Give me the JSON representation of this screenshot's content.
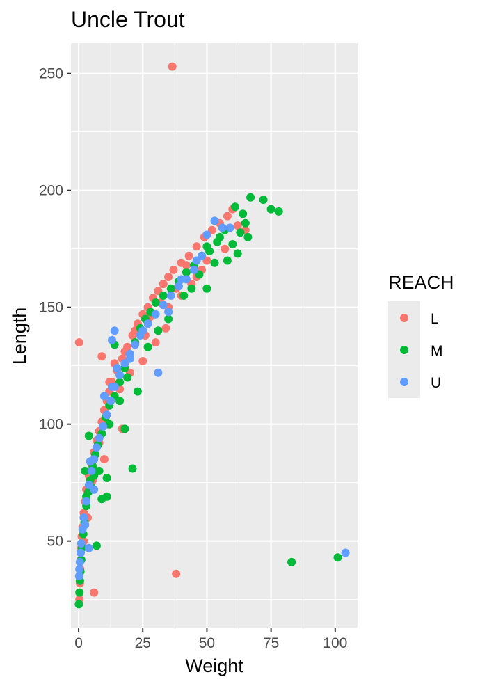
{
  "chart_data": {
    "type": "scatter",
    "title": "Uncle Trout",
    "xlabel": "Weight",
    "ylabel": "Length",
    "xlim": [
      -3,
      109
    ],
    "ylim": [
      13,
      263
    ],
    "x_ticks": [
      0,
      25,
      50,
      75,
      100
    ],
    "y_ticks": [
      50,
      100,
      150,
      200,
      250
    ],
    "grid": true,
    "legend": {
      "title": "REACH",
      "position": "right"
    },
    "series": [
      {
        "name": "L",
        "color": "#f8766d",
        "points": [
          [
            0.2,
            135
          ],
          [
            36.5,
            253
          ],
          [
            38,
            36
          ],
          [
            6,
            28
          ],
          [
            9,
            129
          ],
          [
            10,
            85
          ],
          [
            17,
            98
          ],
          [
            0.3,
            25
          ],
          [
            0.5,
            32
          ],
          [
            0.6,
            38
          ],
          [
            0.8,
            42
          ],
          [
            1.0,
            47
          ],
          [
            1.2,
            52
          ],
          [
            1.5,
            56
          ],
          [
            2.0,
            62
          ],
          [
            2.5,
            67
          ],
          [
            3.0,
            72
          ],
          [
            4.0,
            78
          ],
          [
            5.0,
            83
          ],
          [
            6.0,
            88
          ],
          [
            7.0,
            93
          ],
          [
            8.0,
            97
          ],
          [
            9.0,
            101
          ],
          [
            10.0,
            106
          ],
          [
            11.0,
            110
          ],
          [
            12.0,
            114
          ],
          [
            13.0,
            118
          ],
          [
            15.0,
            123
          ],
          [
            17.0,
            128
          ],
          [
            19.0,
            133
          ],
          [
            21.0,
            138
          ],
          [
            23.0,
            143
          ],
          [
            25.0,
            147
          ],
          [
            27.0,
            150
          ],
          [
            29.0,
            154
          ],
          [
            31.0,
            157
          ],
          [
            33.0,
            160
          ],
          [
            35.0,
            163
          ],
          [
            37.0,
            166
          ],
          [
            40.0,
            169
          ],
          [
            43.0,
            172
          ],
          [
            46.0,
            176
          ],
          [
            49.0,
            180
          ],
          [
            52.0,
            183
          ],
          [
            55.0,
            186
          ],
          [
            58.0,
            189
          ],
          [
            62.0,
            185
          ],
          [
            65.0,
            183
          ],
          [
            30.0,
            135
          ],
          [
            25.0,
            127
          ],
          [
            20.0,
            122
          ],
          [
            14.0,
            126
          ],
          [
            12.0,
            118
          ],
          [
            8.0,
            92
          ],
          [
            5.5,
            76
          ],
          [
            3.5,
            60
          ],
          [
            2.0,
            50
          ],
          [
            44.0,
            160
          ],
          [
            48.0,
            166
          ],
          [
            35.0,
            150
          ],
          [
            40.0,
            155
          ],
          [
            57.0,
            175
          ],
          [
            60.0,
            192
          ],
          [
            22.0,
            140
          ],
          [
            18.0,
            131
          ],
          [
            28.0,
            146
          ],
          [
            32.0,
            152
          ],
          [
            42.0,
            168
          ],
          [
            46.0,
            163
          ],
          [
            34.0,
            141
          ],
          [
            38.0,
            158
          ],
          [
            11.0,
            100
          ],
          [
            16.0,
            115
          ],
          [
            26.0,
            138
          ],
          [
            50.0,
            170
          ]
        ]
      },
      {
        "name": "M",
        "color": "#00ba38",
        "points": [
          [
            83,
            41
          ],
          [
            101,
            43
          ],
          [
            21,
            81
          ],
          [
            11,
            77
          ],
          [
            9,
            68
          ],
          [
            11,
            69
          ],
          [
            7,
            48
          ],
          [
            18,
            98
          ],
          [
            23,
            114
          ],
          [
            67,
            197
          ],
          [
            72,
            196
          ],
          [
            75,
            192
          ],
          [
            78,
            191
          ],
          [
            61,
            193
          ],
          [
            64,
            190
          ],
          [
            66,
            180
          ],
          [
            65,
            186
          ],
          [
            62,
            173
          ],
          [
            60,
            177
          ],
          [
            55,
            180
          ],
          [
            50,
            176
          ],
          [
            0.1,
            23
          ],
          [
            0.3,
            28
          ],
          [
            0.5,
            33
          ],
          [
            0.7,
            37
          ],
          [
            1.0,
            42
          ],
          [
            1.3,
            47
          ],
          [
            1.8,
            53
          ],
          [
            2.3,
            58
          ],
          [
            3.0,
            65
          ],
          [
            3.8,
            71
          ],
          [
            4.5,
            76
          ],
          [
            5.5,
            82
          ],
          [
            6.5,
            87
          ],
          [
            7.5,
            91
          ],
          [
            9.0,
            96
          ],
          [
            10.5,
            103
          ],
          [
            12.0,
            108
          ],
          [
            14.0,
            112
          ],
          [
            16.0,
            118
          ],
          [
            18.0,
            124
          ],
          [
            20.0,
            130
          ],
          [
            22.0,
            135
          ],
          [
            24.0,
            141
          ],
          [
            26.0,
            145
          ],
          [
            28.0,
            148
          ],
          [
            30.0,
            152
          ],
          [
            33.0,
            155
          ],
          [
            36.0,
            158
          ],
          [
            39.0,
            161
          ],
          [
            42.0,
            165
          ],
          [
            45.0,
            168
          ],
          [
            48.0,
            172
          ],
          [
            51.0,
            174
          ],
          [
            54.0,
            178
          ],
          [
            57.0,
            183
          ],
          [
            14.0,
            134
          ],
          [
            4.0,
            95
          ],
          [
            2.5,
            80
          ],
          [
            3.0,
            69
          ],
          [
            8.0,
            80
          ],
          [
            44.0,
            158
          ],
          [
            50.0,
            158
          ],
          [
            35.0,
            145
          ],
          [
            31.0,
            140
          ],
          [
            47.0,
            164
          ],
          [
            58.0,
            170
          ],
          [
            63.0,
            182
          ],
          [
            5.0,
            73
          ],
          [
            12.0,
            100
          ],
          [
            19.0,
            120
          ],
          [
            27.0,
            133
          ],
          [
            41.0,
            155
          ],
          [
            53.0,
            169
          ],
          [
            16.0,
            110
          ],
          [
            6.0,
            78
          ]
        ]
      },
      {
        "name": "U",
        "color": "#619cff",
        "points": [
          [
            104,
            45
          ],
          [
            31,
            122
          ],
          [
            14,
            140
          ],
          [
            13,
            136
          ],
          [
            4,
            47
          ],
          [
            0.2,
            35
          ],
          [
            0.3,
            38
          ],
          [
            0.5,
            41
          ],
          [
            0.8,
            45
          ],
          [
            1.0,
            49
          ],
          [
            1.5,
            55
          ],
          [
            2.0,
            60
          ],
          [
            3.0,
            67
          ],
          [
            4.0,
            74
          ],
          [
            5.0,
            80
          ],
          [
            6.0,
            85
          ],
          [
            7.0,
            90
          ],
          [
            8.0,
            94
          ],
          [
            9.5,
            99
          ],
          [
            11.0,
            104
          ],
          [
            12.5,
            110
          ],
          [
            14.0,
            116
          ],
          [
            16.0,
            121
          ],
          [
            18.0,
            126
          ],
          [
            20.0,
            130
          ],
          [
            22.0,
            134
          ],
          [
            24.0,
            138
          ],
          [
            27.0,
            143
          ],
          [
            30.0,
            147
          ],
          [
            33.0,
            151
          ],
          [
            36.0,
            155
          ],
          [
            39.0,
            159
          ],
          [
            42.0,
            162
          ],
          [
            45.0,
            166
          ],
          [
            48.0,
            172
          ],
          [
            50.0,
            181
          ],
          [
            53.0,
            187
          ],
          [
            56.0,
            184
          ],
          [
            59.0,
            184
          ],
          [
            4.5,
            84
          ],
          [
            6.0,
            72
          ],
          [
            2.5,
            57
          ],
          [
            10.0,
            112
          ],
          [
            15.0,
            124
          ],
          [
            25.0,
            140
          ],
          [
            35.0,
            148
          ],
          [
            40.0,
            162
          ],
          [
            46.0,
            170
          ],
          [
            20.0,
            128
          ],
          [
            13.0,
            116
          ]
        ]
      }
    ]
  }
}
